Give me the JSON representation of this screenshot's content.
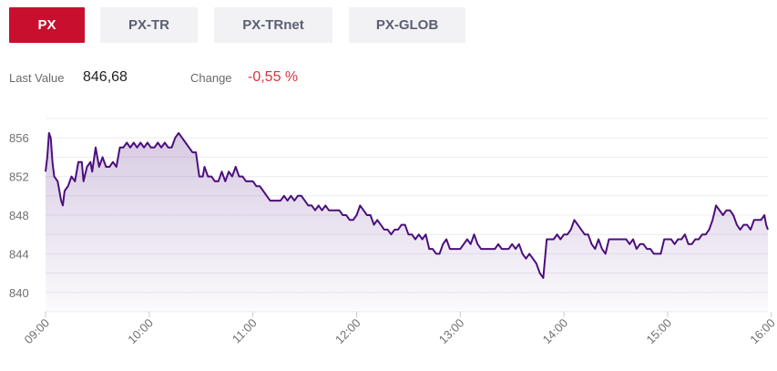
{
  "tabs": [
    {
      "label": "PX",
      "active": true
    },
    {
      "label": "PX-TR",
      "active": false
    },
    {
      "label": "PX-TRnet",
      "active": false
    },
    {
      "label": "PX-GLOB",
      "active": false
    }
  ],
  "stats": {
    "last_value_label": "Last Value",
    "last_value": "846,68",
    "change_label": "Change",
    "change_value": "-0,55 %"
  },
  "colors": {
    "accent": "#c8102e",
    "line": "#4b0f7d",
    "negative": "#d9363e"
  },
  "chart_data": {
    "type": "area",
    "title": "",
    "xlabel": "",
    "ylabel": "",
    "ylim": [
      838,
      858
    ],
    "yticks": [
      {
        "value": 840,
        "label": "840"
      },
      {
        "value": 844,
        "label": "844"
      },
      {
        "value": 848,
        "label": "848"
      },
      {
        "value": 852,
        "label": "852"
      },
      {
        "value": 856,
        "label": "856"
      }
    ],
    "xticks": [
      {
        "value": 0,
        "label": "09:00"
      },
      {
        "value": 60,
        "label": "10:00"
      },
      {
        "value": 120,
        "label": "11:00"
      },
      {
        "value": 180,
        "label": "12:00"
      },
      {
        "value": 240,
        "label": "13:00"
      },
      {
        "value": 300,
        "label": "14:00"
      },
      {
        "value": 360,
        "label": "15:00"
      },
      {
        "value": 420,
        "label": "16:00"
      }
    ],
    "grid": true,
    "series": [
      {
        "points": [
          [
            0,
            852.5
          ],
          [
            1,
            854
          ],
          [
            2,
            856.5
          ],
          [
            3,
            856
          ],
          [
            4,
            853.5
          ],
          [
            5,
            852
          ],
          [
            7,
            851.5
          ],
          [
            9,
            849.5
          ],
          [
            10,
            849
          ],
          [
            11,
            850.5
          ],
          [
            13,
            851
          ],
          [
            15,
            852
          ],
          [
            17,
            851.5
          ],
          [
            19,
            853.5
          ],
          [
            21,
            853.5
          ],
          [
            22,
            851.5
          ],
          [
            24,
            853
          ],
          [
            26,
            853.5
          ],
          [
            27,
            852.5
          ],
          [
            29,
            855
          ],
          [
            31,
            853
          ],
          [
            33,
            854
          ],
          [
            35,
            853
          ],
          [
            37,
            853
          ],
          [
            39,
            853.5
          ],
          [
            41,
            853
          ],
          [
            43,
            855
          ],
          [
            45,
            855
          ],
          [
            47,
            855.5
          ],
          [
            49,
            855
          ],
          [
            51,
            855.5
          ],
          [
            53,
            855
          ],
          [
            55,
            855.5
          ],
          [
            57,
            855
          ],
          [
            59,
            855.5
          ],
          [
            61,
            855
          ],
          [
            63,
            855
          ],
          [
            65,
            855.5
          ],
          [
            67,
            855
          ],
          [
            69,
            855.5
          ],
          [
            71,
            855
          ],
          [
            73,
            855
          ],
          [
            75,
            856
          ],
          [
            77,
            856.5
          ],
          [
            79,
            856
          ],
          [
            81,
            855.5
          ],
          [
            83,
            855
          ],
          [
            85,
            854.5
          ],
          [
            87,
            854.5
          ],
          [
            89,
            852
          ],
          [
            91,
            852
          ],
          [
            92,
            853
          ],
          [
            94,
            852
          ],
          [
            96,
            852
          ],
          [
            98,
            851.5
          ],
          [
            100,
            851.5
          ],
          [
            102,
            852.5
          ],
          [
            104,
            851.5
          ],
          [
            106,
            852.5
          ],
          [
            108,
            852
          ],
          [
            110,
            853
          ],
          [
            112,
            852
          ],
          [
            114,
            852
          ],
          [
            116,
            851.5
          ],
          [
            118,
            851.5
          ],
          [
            120,
            851.5
          ],
          [
            122,
            851
          ],
          [
            124,
            851
          ],
          [
            126,
            850.5
          ],
          [
            128,
            850
          ],
          [
            130,
            849.5
          ],
          [
            132,
            849.5
          ],
          [
            134,
            849.5
          ],
          [
            136,
            849.5
          ],
          [
            138,
            850
          ],
          [
            140,
            849.5
          ],
          [
            142,
            850
          ],
          [
            144,
            849.5
          ],
          [
            146,
            850
          ],
          [
            148,
            850
          ],
          [
            150,
            849.5
          ],
          [
            152,
            849
          ],
          [
            154,
            849
          ],
          [
            156,
            848.5
          ],
          [
            158,
            849
          ],
          [
            160,
            848.5
          ],
          [
            162,
            849
          ],
          [
            164,
            848.5
          ],
          [
            166,
            848.5
          ],
          [
            168,
            848.5
          ],
          [
            170,
            848.5
          ],
          [
            172,
            848
          ],
          [
            174,
            848
          ],
          [
            176,
            847.5
          ],
          [
            178,
            847.5
          ],
          [
            180,
            848
          ],
          [
            182,
            849
          ],
          [
            184,
            848.5
          ],
          [
            186,
            848
          ],
          [
            188,
            848
          ],
          [
            190,
            847
          ],
          [
            192,
            847.5
          ],
          [
            194,
            847
          ],
          [
            196,
            846.5
          ],
          [
            198,
            846.5
          ],
          [
            200,
            846
          ],
          [
            202,
            846.5
          ],
          [
            204,
            846.5
          ],
          [
            206,
            847
          ],
          [
            208,
            847
          ],
          [
            210,
            846
          ],
          [
            212,
            846
          ],
          [
            214,
            845.5
          ],
          [
            216,
            846
          ],
          [
            218,
            845.5
          ],
          [
            220,
            846
          ],
          [
            222,
            844.5
          ],
          [
            224,
            844.5
          ],
          [
            226,
            844
          ],
          [
            228,
            844
          ],
          [
            230,
            845
          ],
          [
            232,
            845.5
          ],
          [
            234,
            844.5
          ],
          [
            236,
            844.5
          ],
          [
            238,
            844.5
          ],
          [
            240,
            844.5
          ],
          [
            242,
            845
          ],
          [
            244,
            845.5
          ],
          [
            246,
            845
          ],
          [
            248,
            846
          ],
          [
            250,
            845
          ],
          [
            252,
            844.5
          ],
          [
            254,
            844.5
          ],
          [
            256,
            844.5
          ],
          [
            258,
            844.5
          ],
          [
            260,
            844.5
          ],
          [
            262,
            845
          ],
          [
            264,
            844.5
          ],
          [
            266,
            844.5
          ],
          [
            268,
            844.5
          ],
          [
            270,
            845
          ],
          [
            272,
            844.5
          ],
          [
            274,
            845
          ],
          [
            276,
            844
          ],
          [
            278,
            843.5
          ],
          [
            280,
            844
          ],
          [
            282,
            843.5
          ],
          [
            284,
            843
          ],
          [
            286,
            842
          ],
          [
            288,
            841.5
          ],
          [
            290,
            845.5
          ],
          [
            292,
            845.5
          ],
          [
            294,
            845.5
          ],
          [
            296,
            846
          ],
          [
            298,
            845.5
          ],
          [
            300,
            846
          ],
          [
            302,
            846
          ],
          [
            304,
            846.5
          ],
          [
            306,
            847.5
          ],
          [
            308,
            847
          ],
          [
            310,
            846.5
          ],
          [
            312,
            846
          ],
          [
            314,
            846
          ],
          [
            316,
            845
          ],
          [
            318,
            844.5
          ],
          [
            320,
            845.5
          ],
          [
            322,
            844.5
          ],
          [
            324,
            844
          ],
          [
            326,
            845.5
          ],
          [
            328,
            845.5
          ],
          [
            330,
            845.5
          ],
          [
            332,
            845.5
          ],
          [
            334,
            845.5
          ],
          [
            336,
            845.5
          ],
          [
            338,
            845
          ],
          [
            340,
            845.5
          ],
          [
            342,
            844.5
          ],
          [
            344,
            845
          ],
          [
            346,
            845
          ],
          [
            348,
            844.5
          ],
          [
            350,
            844.5
          ],
          [
            352,
            844
          ],
          [
            354,
            844
          ],
          [
            356,
            844
          ],
          [
            358,
            845.5
          ],
          [
            360,
            845.5
          ],
          [
            362,
            845.5
          ],
          [
            364,
            845
          ],
          [
            366,
            845.5
          ],
          [
            368,
            845.5
          ],
          [
            370,
            846
          ],
          [
            372,
            845
          ],
          [
            374,
            845
          ],
          [
            376,
            845.5
          ],
          [
            378,
            845.5
          ],
          [
            380,
            846
          ],
          [
            382,
            846
          ],
          [
            384,
            846.5
          ],
          [
            386,
            847.5
          ],
          [
            388,
            849
          ],
          [
            390,
            848.5
          ],
          [
            392,
            848
          ],
          [
            394,
            848.5
          ],
          [
            396,
            848.5
          ],
          [
            398,
            848
          ],
          [
            400,
            847
          ],
          [
            402,
            846.5
          ],
          [
            404,
            847
          ],
          [
            406,
            847
          ],
          [
            408,
            846.5
          ],
          [
            410,
            847.5
          ],
          [
            412,
            847.5
          ],
          [
            414,
            847.5
          ],
          [
            416,
            848
          ],
          [
            417,
            847
          ],
          [
            418,
            846.5
          ]
        ]
      }
    ]
  }
}
